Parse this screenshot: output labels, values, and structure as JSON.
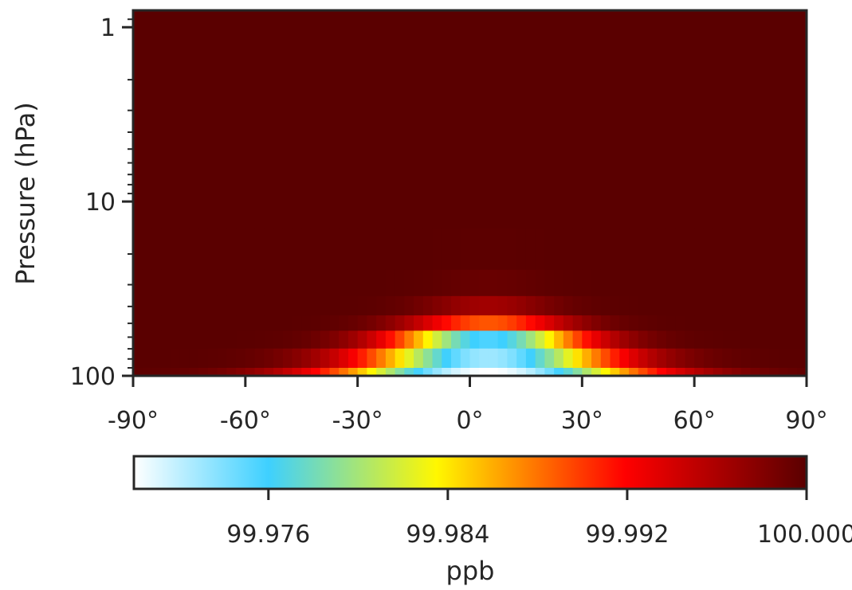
{
  "chart_data": {
    "type": "heatmap",
    "title": "",
    "xlabel": "",
    "ylabel": "Pressure (hPa)",
    "x_ticks": [
      {
        "value": -90,
        "label": "-90°"
      },
      {
        "value": -60,
        "label": "-60°"
      },
      {
        "value": -30,
        "label": "-30°"
      },
      {
        "value": 0,
        "label": "0°"
      },
      {
        "value": 30,
        "label": "30°"
      },
      {
        "value": 60,
        "label": "60°"
      },
      {
        "value": 90,
        "label": "90°"
      }
    ],
    "xlim": [
      -90,
      90
    ],
    "y_scale": "log",
    "y_inverted": true,
    "ylim": [
      100,
      0.8
    ],
    "y_ticks": [
      {
        "value": 1,
        "label": "1"
      },
      {
        "value": 10,
        "label": "10"
      },
      {
        "value": 100,
        "label": "100"
      }
    ],
    "pressure_levels": [
      100,
      80,
      60,
      50,
      40,
      30,
      20,
      10
    ],
    "colorbar": {
      "label": "ppb",
      "colormap": "white-cyan-yellow-red-darkred",
      "range": [
        99.97,
        100.0
      ],
      "ticks": [
        {
          "value": 99.976,
          "label": "99.976"
        },
        {
          "value": 99.984,
          "label": "99.984"
        },
        {
          "value": 99.992,
          "label": "99.992"
        },
        {
          "value": 100.0,
          "label": "100.000"
        }
      ]
    },
    "field": [
      {
        "pressure": 100,
        "center_lat": 5,
        "min_value": 99.97,
        "half_width_deg": 60
      },
      {
        "pressure": 80,
        "center_lat": 5,
        "min_value": 99.973,
        "half_width_deg": 48
      },
      {
        "pressure": 60,
        "center_lat": 5,
        "min_value": 99.9755,
        "half_width_deg": 38
      },
      {
        "pressure": 50,
        "center_lat": 5,
        "min_value": 99.989,
        "half_width_deg": 32
      },
      {
        "pressure": 40,
        "center_lat": 5,
        "min_value": 99.9965,
        "half_width_deg": 26
      },
      {
        "pressure": 30,
        "center_lat": 5,
        "min_value": 99.9993,
        "half_width_deg": 22
      },
      {
        "pressure": 20,
        "center_lat": 5,
        "min_value": 99.9999,
        "half_width_deg": 18
      },
      {
        "pressure": 10,
        "center_lat": 5,
        "min_value": 100.0,
        "half_width_deg": 10
      }
    ],
    "background_value": 100.0,
    "colors": {
      "axis": "#262626",
      "colormap_stops": [
        "#ffffff",
        "#3ed0ff",
        "#fff700",
        "#ff0000",
        "#5a0000"
      ]
    }
  }
}
